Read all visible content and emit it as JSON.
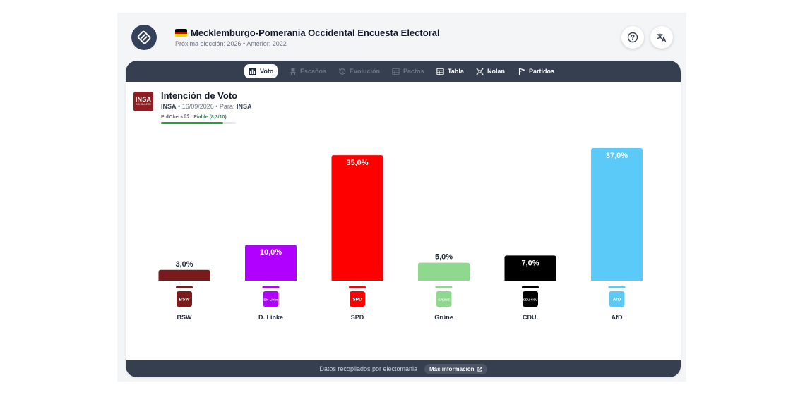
{
  "header": {
    "title": "Mecklemburgo-Pomerania Occidental Encuesta Electoral",
    "subtitle": "Próxima elección: 2026 • Anterior: 2022",
    "help_icon": "question-circle-icon",
    "language_icon": "translate-icon",
    "flag_colors": [
      "#000000",
      "#dd0000",
      "#ffcc00"
    ]
  },
  "tabs": [
    {
      "label": "Voto",
      "icon": "bar-chart-icon",
      "active": true
    },
    {
      "label": "Escaños",
      "icon": "chair-icon",
      "enabled": false
    },
    {
      "label": "Evolución",
      "icon": "history-icon",
      "enabled": false
    },
    {
      "label": "Pactos",
      "icon": "table-icon",
      "enabled": false
    },
    {
      "label": "Tabla",
      "icon": "table-icon",
      "enabled": true
    },
    {
      "label": "Nolan",
      "icon": "hub-icon",
      "enabled": true
    },
    {
      "label": "Partidos",
      "icon": "flag-icon",
      "enabled": true
    }
  ],
  "poll": {
    "title": "Intención de Voto",
    "pollster": "INSA",
    "date": "16/09/2026",
    "for_label": "Para:",
    "for_value": "INSA",
    "logo_text": "INSA",
    "logo_sub": "CONSULERE",
    "pollcheck_label": "PollCheck",
    "reliability": "Fiable (8,3/10)",
    "reliability_score": 8.3
  },
  "chart_data": {
    "type": "bar",
    "categories": [
      "BSW",
      "D. Linke",
      "SPD",
      "Grüne",
      "CDU.",
      "AfD"
    ],
    "values": [
      3.0,
      10.0,
      35.0,
      5.0,
      7.0,
      37.0
    ],
    "value_labels": [
      "3,0%",
      "10,0%",
      "35,0%",
      "5,0%",
      "7,0%",
      "37,0%"
    ],
    "colors": [
      "#7a1a1a",
      "#b000ff",
      "#ff0000",
      "#8fd98f",
      "#000000",
      "#5ccaf8"
    ],
    "logos": [
      "BSW",
      "Die Linke",
      "SPD",
      "GRÜNE",
      "CDU·CSU",
      "AfD"
    ],
    "title": "",
    "xlabel": "",
    "ylabel": "",
    "ylim": [
      0,
      37
    ],
    "grid": false
  },
  "footer": {
    "text": "Datos recopilados por electomania",
    "button": "Más información"
  }
}
